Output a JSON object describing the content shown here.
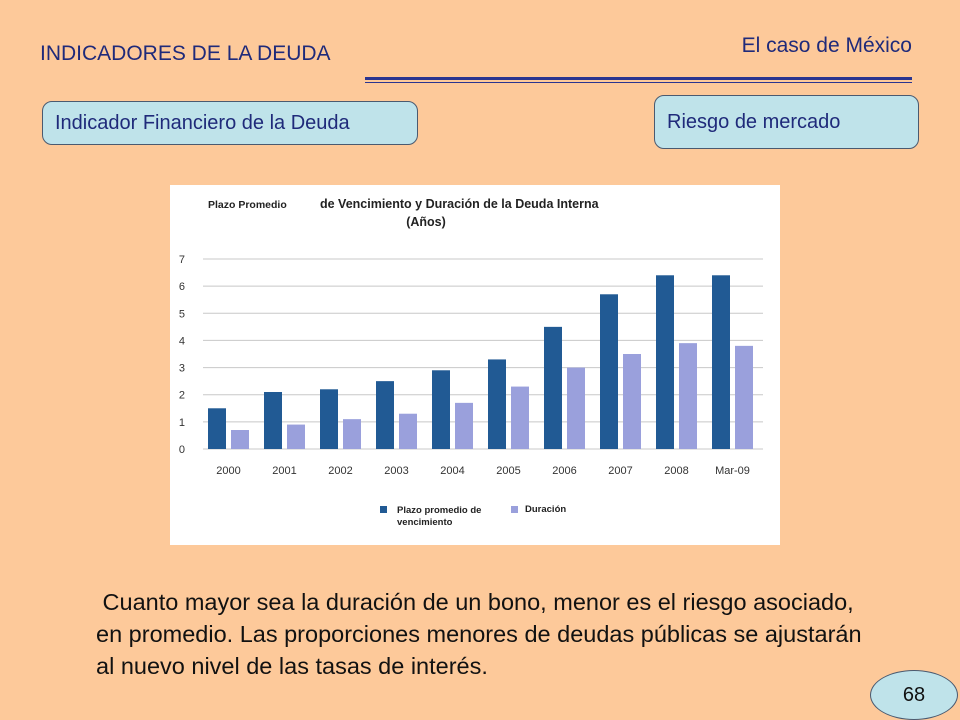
{
  "header": {
    "section_title": "INDICADORES DE LA DEUDA",
    "case_title": "El caso de México"
  },
  "pills": {
    "left": "Indicador Financiero de la Deuda",
    "right": "Riesgo de mercado"
  },
  "chart_data": {
    "type": "bar",
    "title_lead": "Plazo Promedio",
    "title_main": "de Vencimiento y Duración de la Deuda Interna",
    "subtitle": "(Años)",
    "categories": [
      "2000",
      "2001",
      "2002",
      "2003",
      "2004",
      "2005",
      "2006",
      "2007",
      "2008",
      "Mar-09"
    ],
    "series": [
      {
        "name": "Plazo promedio de vencimiento",
        "color": "#215a94",
        "values": [
          1.5,
          2.1,
          2.2,
          2.5,
          2.9,
          3.3,
          4.5,
          5.7,
          6.4,
          6.4
        ]
      },
      {
        "name": "Duración",
        "color": "#9aa0dc",
        "values": [
          0.7,
          0.9,
          1.1,
          1.3,
          1.7,
          2.3,
          3.0,
          3.5,
          3.9,
          3.8
        ]
      }
    ],
    "ylim": [
      0,
      7
    ],
    "yticks": [
      0,
      1,
      2,
      3,
      4,
      5,
      6,
      7
    ],
    "grid": true,
    "legend_position": "bottom",
    "colors": {
      "background": "#ffffff",
      "grid": "#c8c8c8"
    }
  },
  "body": {
    "text": " Cuanto mayor sea la duración de un bono, menor es el riesgo asociado, en promedio. Las proporciones menores de deudas públicas se ajustarán al nuevo nivel de las tasas de interés."
  },
  "footer": {
    "page_number": "68"
  },
  "colors": {
    "background": "#fdc99a",
    "heading": "#1f2a7a",
    "pill": "#bfe3ea"
  }
}
